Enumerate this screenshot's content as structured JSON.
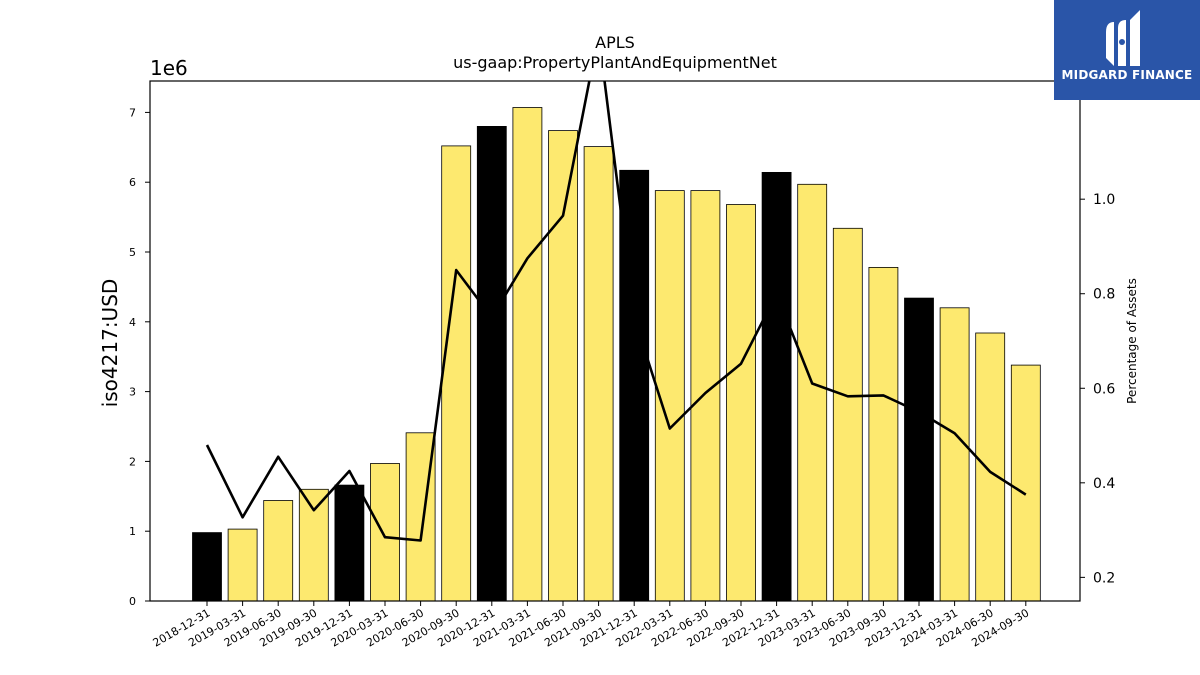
{
  "logo": {
    "text": "MIDGARD FINANCE",
    "icon": "midgard-logo-icon",
    "background": "#2a55a8"
  },
  "chart_data": {
    "type": "bar",
    "title": "APLS",
    "subtitle": "us-gaap:PropertyPlantAndEquipmentNet",
    "ylabel": "iso4217:USD",
    "y_multiplier_label": "1e6",
    "y2label": "Percentage of Assets",
    "ylim": [
      0,
      7.45
    ],
    "y2lim": [
      0.15,
      1.25
    ],
    "yticks": [
      0,
      1,
      2,
      3,
      4,
      5,
      6,
      7
    ],
    "y2ticks": [
      0.2,
      0.4,
      0.6,
      0.8,
      1.0
    ],
    "categories": [
      "2018-12-31",
      "2019-03-31",
      "2019-06-30",
      "2019-09-30",
      "2019-12-31",
      "2020-03-31",
      "2020-06-30",
      "2020-09-30",
      "2020-12-31",
      "2021-03-31",
      "2021-06-30",
      "2021-09-30",
      "2021-12-31",
      "2022-03-31",
      "2022-06-30",
      "2022-09-30",
      "2022-12-31",
      "2023-03-31",
      "2023-06-30",
      "2023-09-30",
      "2023-12-31",
      "2024-03-31",
      "2024-06-30",
      "2024-09-30"
    ],
    "series": [
      {
        "kind": "bar",
        "values": [
          0.98,
          1.03,
          1.44,
          1.6,
          1.66,
          1.97,
          2.41,
          6.52,
          6.8,
          7.07,
          6.74,
          6.51,
          6.17,
          5.88,
          5.88,
          5.68,
          6.14,
          5.97,
          5.34,
          4.78,
          4.34,
          4.2,
          3.84,
          3.38
        ],
        "is_annual": [
          true,
          false,
          false,
          false,
          true,
          false,
          false,
          false,
          true,
          false,
          false,
          false,
          true,
          false,
          false,
          false,
          true,
          false,
          false,
          false,
          true,
          false,
          false,
          false
        ]
      },
      {
        "kind": "line",
        "axis": "right",
        "values": [
          0.48,
          0.327,
          0.455,
          0.342,
          0.425,
          0.285,
          0.278,
          0.85,
          0.75,
          0.875,
          0.965,
          1.35,
          0.75,
          0.515,
          0.59,
          0.652,
          0.8,
          0.61,
          0.583,
          0.585,
          0.55,
          0.505,
          0.423,
          0.375
        ]
      }
    ],
    "colors": {
      "annual_bar": "#000000",
      "quarter_bar": "#fde96f",
      "line": "#000000"
    },
    "grid": false,
    "legend": "none"
  }
}
